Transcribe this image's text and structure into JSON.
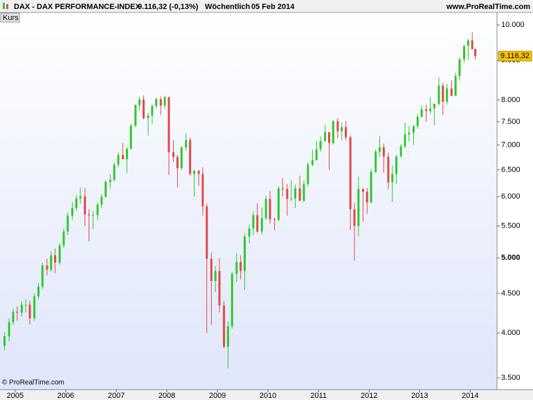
{
  "chart_data": {
    "type": "ohlc",
    "title": "DAX - DAX PERFORMANCE-INDEX",
    "price_text": "9.116,32 (-0,13%)",
    "period": "Wöchentlich",
    "date": "05 Feb 2014",
    "source": "www.ProRealTime.com",
    "series_label": "Kurs",
    "copyright": "© ProRealTime.com",
    "last_value": 9116.32,
    "last_value_label": "9.116,32",
    "up_color": "#2ec82e",
    "down_color": "#e04848",
    "log_scale": true,
    "xlim": [
      2004.7,
      2014.53
    ],
    "xticks": [
      2005,
      2006,
      2007,
      2008,
      2009,
      2010,
      2011,
      2012,
      2013,
      2014
    ],
    "ylim": [
      3380,
      10380
    ],
    "yticks": [
      {
        "value": 3500,
        "label": "3.500"
      },
      {
        "value": 4000,
        "label": "4.000"
      },
      {
        "value": 4500,
        "label": "4.500"
      },
      {
        "value": 5000,
        "label": "5.000"
      },
      {
        "value": 5500,
        "label": "5.500"
      },
      {
        "value": 6000,
        "label": "6.000"
      },
      {
        "value": 6500,
        "label": "6.500"
      },
      {
        "value": 7000,
        "label": "7.000"
      },
      {
        "value": 7500,
        "label": "7.500"
      },
      {
        "value": 8000,
        "label": "8.000"
      },
      {
        "value": 9000,
        "label": "9.000"
      },
      {
        "value": 10000,
        "label": "10.000"
      }
    ],
    "x": [
      2004.79,
      2004.88,
      2004.96,
      2005.04,
      2005.13,
      2005.21,
      2005.29,
      2005.38,
      2005.46,
      2005.54,
      2005.63,
      2005.71,
      2005.79,
      2005.88,
      2005.96,
      2006.04,
      2006.13,
      2006.21,
      2006.29,
      2006.38,
      2006.46,
      2006.54,
      2006.63,
      2006.71,
      2006.79,
      2006.88,
      2006.96,
      2007.04,
      2007.13,
      2007.21,
      2007.29,
      2007.38,
      2007.46,
      2007.54,
      2007.63,
      2007.71,
      2007.79,
      2007.88,
      2007.96,
      2008.04,
      2008.13,
      2008.21,
      2008.29,
      2008.38,
      2008.46,
      2008.54,
      2008.63,
      2008.71,
      2008.79,
      2008.88,
      2008.96,
      2009.04,
      2009.13,
      2009.21,
      2009.29,
      2009.38,
      2009.46,
      2009.54,
      2009.63,
      2009.71,
      2009.79,
      2009.88,
      2009.96,
      2010.04,
      2010.13,
      2010.21,
      2010.29,
      2010.38,
      2010.46,
      2010.54,
      2010.63,
      2010.71,
      2010.79,
      2010.88,
      2010.96,
      2011.04,
      2011.13,
      2011.21,
      2011.29,
      2011.38,
      2011.46,
      2011.54,
      2011.63,
      2011.71,
      2011.79,
      2011.88,
      2011.96,
      2012.04,
      2012.13,
      2012.21,
      2012.29,
      2012.38,
      2012.46,
      2012.54,
      2012.63,
      2012.71,
      2012.79,
      2012.88,
      2012.96,
      2013.04,
      2013.13,
      2013.21,
      2013.29,
      2013.38,
      2013.46,
      2013.54,
      2013.63,
      2013.71,
      2013.79,
      2013.88,
      2013.96,
      2014.04,
      2014.1
    ],
    "open": [
      3850,
      3960,
      4130,
      4260,
      4250,
      4350,
      4350,
      4180,
      4460,
      4590,
      4890,
      4830,
      5040,
      4930,
      5190,
      5410,
      5670,
      5800,
      5970,
      6010,
      5690,
      5680,
      5680,
      5860,
      6000,
      6270,
      6310,
      6600,
      6790,
      6710,
      6920,
      7410,
      7880,
      8010,
      7580,
      7640,
      7860,
      8020,
      7870,
      8070,
      6850,
      6750,
      6530,
      6950,
      7100,
      6420,
      6480,
      6420,
      5830,
      4990,
      4670,
      4810,
      4340,
      3840,
      4080,
      4770,
      4940,
      4810,
      5330,
      5460,
      5680,
      5410,
      5630,
      5960,
      5610,
      5600,
      6150,
      6140,
      5960,
      5970,
      6150,
      5930,
      6230,
      6600,
      6690,
      6910,
      7080,
      7270,
      7040,
      7510,
      7290,
      7380,
      7160,
      5780,
      5500,
      6140,
      6090,
      5900,
      6460,
      6860,
      6950,
      6760,
      6260,
      6420,
      6770,
      6970,
      7220,
      7260,
      7400,
      7610,
      7780,
      7740,
      7800,
      7910,
      8350,
      7960,
      8280,
      8100,
      8590,
      9030,
      9400,
      9550,
      9310
    ],
    "high": [
      4010,
      4180,
      4300,
      4330,
      4400,
      4420,
      4400,
      4500,
      4640,
      4930,
      4990,
      5100,
      5140,
      5230,
      5460,
      5730,
      5900,
      6030,
      6170,
      6160,
      5780,
      5750,
      5900,
      6050,
      6310,
      6420,
      6640,
      6850,
      7040,
      6960,
      7450,
      7900,
      8080,
      8110,
      7700,
      7900,
      8060,
      8080,
      8100,
      8080,
      7100,
      6800,
      6970,
      7250,
      7150,
      6500,
      6500,
      6550,
      5880,
      5080,
      4880,
      5000,
      4400,
      4140,
      4800,
      5070,
      5040,
      5380,
      5520,
      5740,
      5890,
      5810,
      6020,
      6100,
      5640,
      6190,
      6340,
      6230,
      6300,
      6220,
      6390,
      6300,
      6650,
      6900,
      7080,
      7180,
      7430,
      7270,
      7530,
      7580,
      7480,
      7520,
      7200,
      5890,
      6370,
      6150,
      6160,
      6520,
      6900,
      7190,
      7030,
      6840,
      6580,
      6790,
      7020,
      7480,
      7400,
      7430,
      7670,
      7870,
      7890,
      8070,
      7920,
      8560,
      8420,
      8400,
      8480,
      8680,
      9070,
      9420,
      9600,
      9790,
      9320
    ],
    "low": [
      3800,
      3900,
      4100,
      4150,
      4200,
      4250,
      4100,
      4150,
      4420,
      4560,
      4750,
      4800,
      4780,
      4900,
      5150,
      5350,
      5600,
      5750,
      5880,
      5500,
      5250,
      5450,
      5600,
      5800,
      5980,
      6150,
      6280,
      6550,
      6700,
      6440,
      6900,
      7380,
      7760,
      7550,
      7200,
      7450,
      7800,
      7650,
      7800,
      6400,
      6650,
      6170,
      6500,
      6880,
      6380,
      6000,
      6200,
      5670,
      4000,
      4100,
      4520,
      4250,
      3820,
      3600,
      4050,
      4660,
      4690,
      4550,
      5220,
      5350,
      5390,
      5360,
      5600,
      5540,
      5430,
      5580,
      6000,
      5670,
      5920,
      5800,
      5920,
      5900,
      6180,
      6570,
      6680,
      6860,
      7070,
      6500,
      7000,
      7140,
      7100,
      7100,
      5430,
      4960,
      5330,
      5570,
      5700,
      5880,
      6440,
      6750,
      6440,
      6130,
      5910,
      6230,
      6740,
      6930,
      7070,
      7000,
      7350,
      7600,
      7500,
      7680,
      7420,
      7870,
      7650,
      7890,
      8090,
      8100,
      8480,
      8940,
      9010,
      9290,
      9020
    ],
    "close": [
      3960,
      4130,
      4260,
      4250,
      4350,
      4350,
      4180,
      4460,
      4590,
      4890,
      4830,
      5040,
      4930,
      5190,
      5410,
      5670,
      5800,
      5970,
      6010,
      5690,
      5680,
      5680,
      5860,
      6000,
      6270,
      6310,
      6600,
      6790,
      6710,
      6920,
      7410,
      7880,
      8010,
      7580,
      7640,
      7860,
      8020,
      7870,
      8070,
      6850,
      6750,
      6530,
      6950,
      7100,
      6420,
      6480,
      6420,
      5830,
      4990,
      4670,
      4810,
      4340,
      3840,
      4080,
      4770,
      4940,
      4810,
      5330,
      5460,
      5680,
      5410,
      5630,
      5960,
      5610,
      5600,
      6150,
      6140,
      5960,
      5970,
      6150,
      5930,
      6230,
      6600,
      6690,
      6910,
      7080,
      7270,
      7040,
      7510,
      7290,
      7380,
      7160,
      5780,
      5500,
      6140,
      6090,
      5900,
      6460,
      6860,
      6950,
      6760,
      6260,
      6420,
      6770,
      6970,
      7220,
      7260,
      7400,
      7610,
      7780,
      7740,
      7800,
      7910,
      8350,
      7960,
      8280,
      8100,
      8590,
      9030,
      9400,
      9550,
      9310,
      9116
    ]
  }
}
